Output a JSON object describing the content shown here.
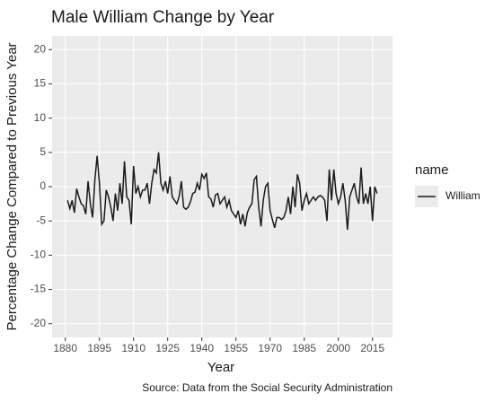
{
  "chart_data": {
    "type": "line",
    "title": "Male William Change by Year",
    "x_label": "Year",
    "y_label": "Percentage Change Compared to Previous Year",
    "caption": "Source: Data from the Social Security Administration",
    "legend_title": "name",
    "x": [
      1881,
      1882,
      1883,
      1884,
      1885,
      1886,
      1887,
      1888,
      1889,
      1890,
      1891,
      1892,
      1893,
      1894,
      1895,
      1896,
      1897,
      1898,
      1899,
      1900,
      1901,
      1902,
      1903,
      1904,
      1905,
      1906,
      1907,
      1908,
      1909,
      1910,
      1911,
      1912,
      1913,
      1914,
      1915,
      1916,
      1917,
      1918,
      1919,
      1920,
      1921,
      1922,
      1923,
      1924,
      1925,
      1926,
      1927,
      1928,
      1929,
      1930,
      1931,
      1932,
      1933,
      1934,
      1935,
      1936,
      1937,
      1938,
      1939,
      1940,
      1941,
      1942,
      1943,
      1944,
      1945,
      1946,
      1947,
      1948,
      1949,
      1950,
      1951,
      1952,
      1953,
      1954,
      1955,
      1956,
      1957,
      1958,
      1959,
      1960,
      1961,
      1962,
      1963,
      1964,
      1965,
      1966,
      1967,
      1968,
      1969,
      1970,
      1971,
      1972,
      1973,
      1974,
      1975,
      1976,
      1977,
      1978,
      1979,
      1980,
      1981,
      1982,
      1983,
      1984,
      1985,
      1986,
      1987,
      1988,
      1989,
      1990,
      1991,
      1992,
      1993,
      1994,
      1995,
      1996,
      1997,
      1998,
      1999,
      2000,
      2001,
      2002,
      2003,
      2004,
      2005,
      2006,
      2007,
      2008,
      2009,
      2010,
      2011,
      2012,
      2013,
      2014,
      2015,
      2016,
      2017
    ],
    "series": [
      {
        "name": "William",
        "color": "#1a1a1a",
        "values": [
          -2,
          -3.2,
          -2,
          -3.8,
          -0.3,
          -1.5,
          -2.5,
          -2.8,
          -4,
          0.8,
          -2.5,
          -4.5,
          1,
          4.5,
          0.5,
          -5.5,
          -5,
          -0.5,
          -1.5,
          -3,
          -5,
          -1,
          -3.5,
          0.5,
          -2.5,
          3.7,
          -1.5,
          -2,
          -5.5,
          3,
          -1,
          0,
          -1.5,
          -0.5,
          -0.5,
          0.5,
          -2.5,
          0.5,
          2.5,
          2,
          5,
          0.5,
          -0.5,
          0.8,
          -1,
          1.5,
          -1.5,
          -2,
          -2.5,
          -1.5,
          0.8,
          -3,
          -3.3,
          -3,
          -2.2,
          -1,
          -0.8,
          0.5,
          -0.5,
          1.8,
          1.2,
          2,
          -1.5,
          -1.8,
          -3,
          -1.2,
          -1,
          -2.5,
          -2,
          -1.5,
          -3,
          -2,
          -3.5,
          -4,
          -4.5,
          -3.5,
          -5.5,
          -4,
          -5.8,
          -3.8,
          -3,
          -2.5,
          1,
          1.5,
          -3,
          -5.8,
          -2,
          0,
          0.5,
          -3.5,
          -4.8,
          -6,
          -4.5,
          -4.5,
          -4.8,
          -4.5,
          -3.5,
          -1.5,
          -4,
          0,
          -3,
          1.8,
          0.5,
          -3.5,
          -2,
          -1,
          -2.5,
          -2,
          -1.5,
          -2,
          -1.5,
          -1.3,
          -1.5,
          -2,
          -5,
          2.5,
          -2,
          2.5,
          -1,
          -2.5,
          -1.5,
          0.5,
          -2,
          -6.3,
          -1.5,
          -0.5,
          0.5,
          -1.5,
          -2.5,
          2.8,
          -2.5,
          -1,
          -2.5,
          0,
          -5,
          0,
          -1
        ]
      }
    ],
    "xlim": [
      1874.2,
      2023.8
    ],
    "xticks": [
      1880,
      1895,
      1910,
      1925,
      1940,
      1955,
      1970,
      1985,
      2000,
      2015
    ],
    "ylim": [
      -22,
      22
    ],
    "yticks": [
      -20,
      -15,
      -10,
      -5,
      0,
      5,
      10,
      15,
      20
    ],
    "grid": true
  }
}
